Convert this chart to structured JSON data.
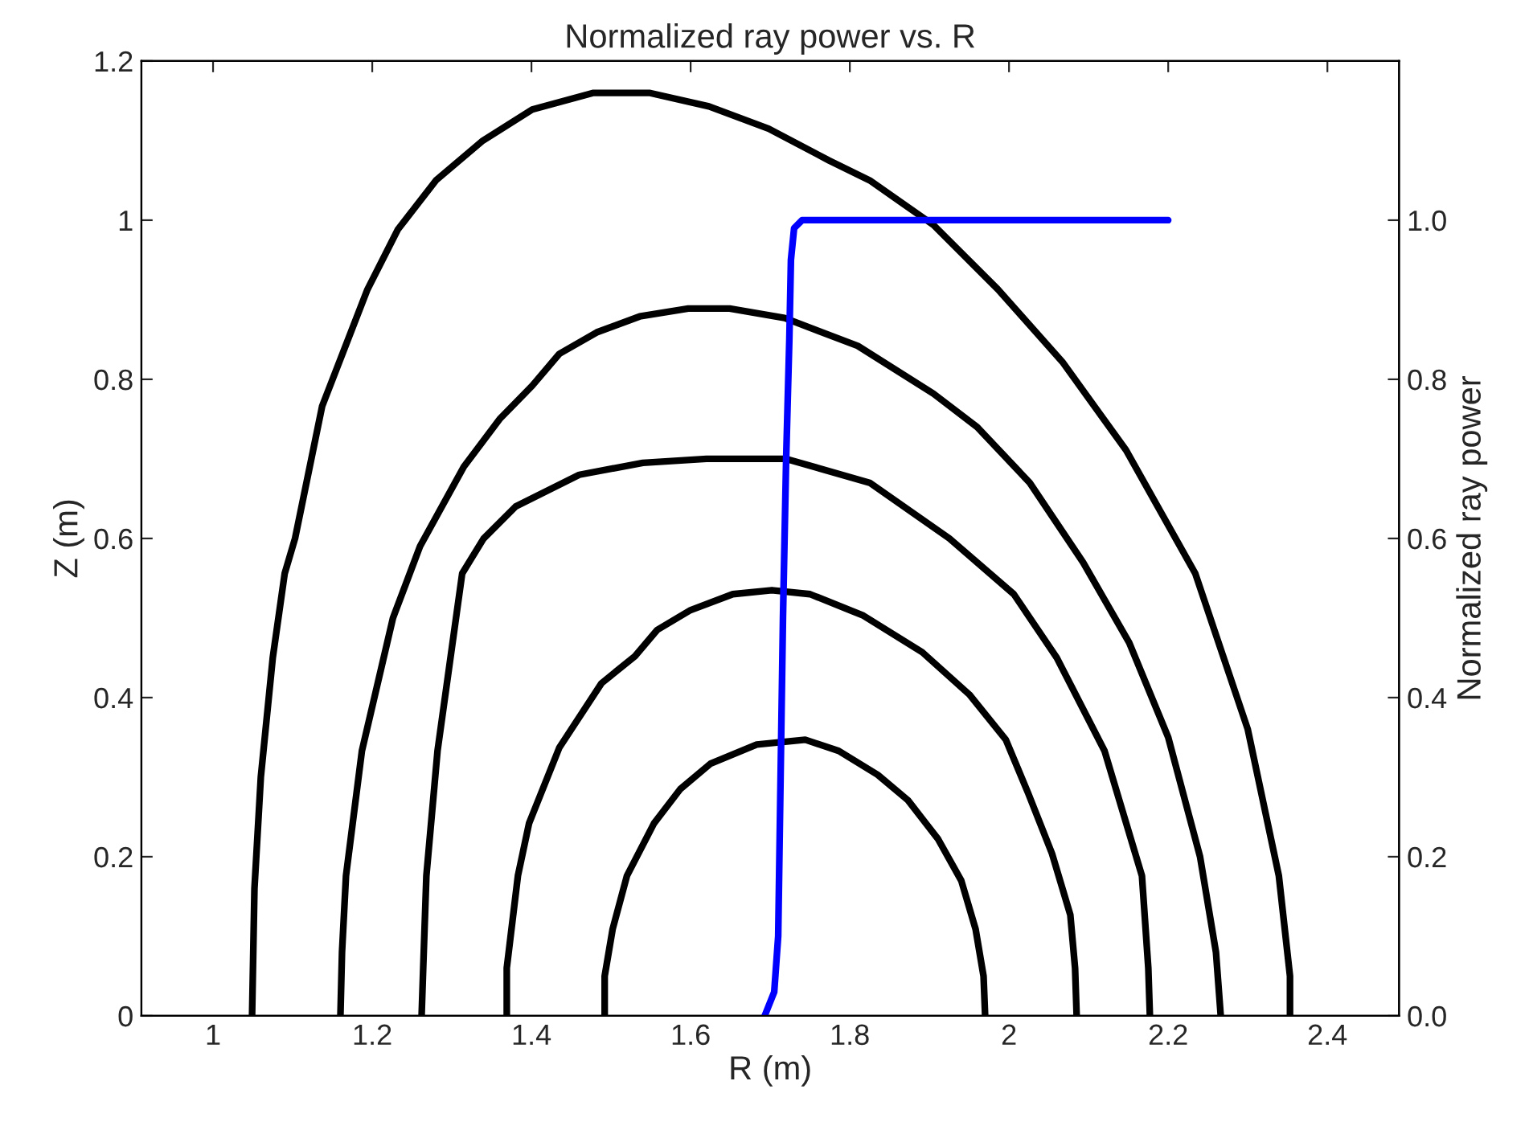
{
  "chart_data": {
    "type": "line",
    "title": "Normalized ray power vs. R",
    "xlabel": "R (m)",
    "ylabel": "Z (m)",
    "y2label": "Normalized ray power",
    "xlim": [
      0.91,
      2.49
    ],
    "xticks": [
      1,
      1.2,
      1.4,
      1.6,
      1.8,
      2,
      2.2,
      2.4
    ],
    "ylim": [
      0,
      1.2
    ],
    "yticks": [
      0,
      0.2,
      0.4,
      0.6,
      0.8,
      1,
      1.2
    ],
    "y2lim": [
      0,
      1.2
    ],
    "y2ticks": [
      {
        "value": 0,
        "label": "0.0"
      },
      {
        "value": 0.2,
        "label": "0.2"
      },
      {
        "value": 0.4,
        "label": "0.4"
      },
      {
        "value": 0.6,
        "label": "0.6"
      },
      {
        "value": 0.8,
        "label": "0.8"
      },
      {
        "value": 1,
        "label": "1.0"
      }
    ],
    "grid": false,
    "marker": "none",
    "line_style": "solid",
    "series": [
      {
        "color": "#000000",
        "x": [
          1.049,
          1.052,
          1.06,
          1.075,
          1.09,
          1.103,
          1.137,
          1.194,
          1.232,
          1.28,
          1.339,
          1.401,
          1.478,
          1.548,
          1.623,
          1.698,
          1.774,
          1.825,
          1.905,
          1.986,
          2.067,
          2.147,
          2.234,
          2.3,
          2.339,
          2.353,
          2.353
        ],
        "values": [
          0,
          0.16,
          0.3,
          0.45,
          0.556,
          0.6,
          0.766,
          0.913,
          0.988,
          1.05,
          1.1,
          1.139,
          1.16,
          1.16,
          1.143,
          1.115,
          1.075,
          1.05,
          0.994,
          0.913,
          0.822,
          0.711,
          0.556,
          0.36,
          0.176,
          0.05,
          0
        ]
      },
      {
        "color": "#000000",
        "x": [
          1.16,
          1.162,
          1.167,
          1.187,
          1.226,
          1.26,
          1.315,
          1.36,
          1.401,
          1.435,
          1.482,
          1.536,
          1.597,
          1.649,
          1.718,
          1.81,
          1.905,
          1.96,
          2.026,
          2.093,
          2.151,
          2.2,
          2.24,
          2.26,
          2.266
        ],
        "values": [
          0,
          0.08,
          0.176,
          0.333,
          0.5,
          0.59,
          0.69,
          0.75,
          0.792,
          0.832,
          0.859,
          0.879,
          0.889,
          0.889,
          0.877,
          0.842,
          0.782,
          0.74,
          0.67,
          0.57,
          0.469,
          0.35,
          0.2,
          0.08,
          0
        ]
      },
      {
        "color": "#000000",
        "x": [
          1.262,
          1.264,
          1.268,
          1.282,
          1.313,
          1.34,
          1.38,
          1.46,
          1.54,
          1.62,
          1.72,
          1.825,
          1.925,
          2.006,
          2.06,
          2.12,
          2.167,
          2.175,
          2.177
        ],
        "values": [
          0,
          0.06,
          0.176,
          0.333,
          0.556,
          0.6,
          0.64,
          0.68,
          0.695,
          0.7,
          0.7,
          0.67,
          0.6,
          0.53,
          0.45,
          0.333,
          0.176,
          0.06,
          0
        ]
      },
      {
        "color": "#000000",
        "x": [
          1.369,
          1.369,
          1.383,
          1.397,
          1.435,
          1.488,
          1.53,
          1.558,
          1.6,
          1.653,
          1.702,
          1.75,
          1.817,
          1.891,
          1.95,
          1.996,
          2.024,
          2.054,
          2.077,
          2.083,
          2.085
        ],
        "values": [
          0,
          0.06,
          0.176,
          0.242,
          0.337,
          0.418,
          0.452,
          0.485,
          0.51,
          0.53,
          0.535,
          0.53,
          0.503,
          0.457,
          0.404,
          0.347,
          0.28,
          0.204,
          0.127,
          0.06,
          0
        ]
      },
      {
        "color": "#000000",
        "x": [
          1.492,
          1.492,
          1.502,
          1.52,
          1.554,
          1.587,
          1.625,
          1.683,
          1.744,
          1.786,
          1.835,
          1.873,
          1.911,
          1.94,
          1.958,
          1.968,
          1.97
        ],
        "values": [
          0,
          0.05,
          0.109,
          0.176,
          0.242,
          0.285,
          0.317,
          0.341,
          0.347,
          0.333,
          0.303,
          0.271,
          0.222,
          0.17,
          0.109,
          0.05,
          0
        ]
      },
      {
        "color": "#0000ff",
        "axis": "y2",
        "x": [
          1.693,
          1.705,
          1.71,
          1.713,
          1.716,
          1.72,
          1.724,
          1.726,
          1.73,
          1.74,
          2.2
        ],
        "values": [
          0,
          0.03,
          0.1,
          0.3,
          0.5,
          0.7,
          0.85,
          0.95,
          0.99,
          1.0,
          1.0
        ]
      }
    ]
  }
}
